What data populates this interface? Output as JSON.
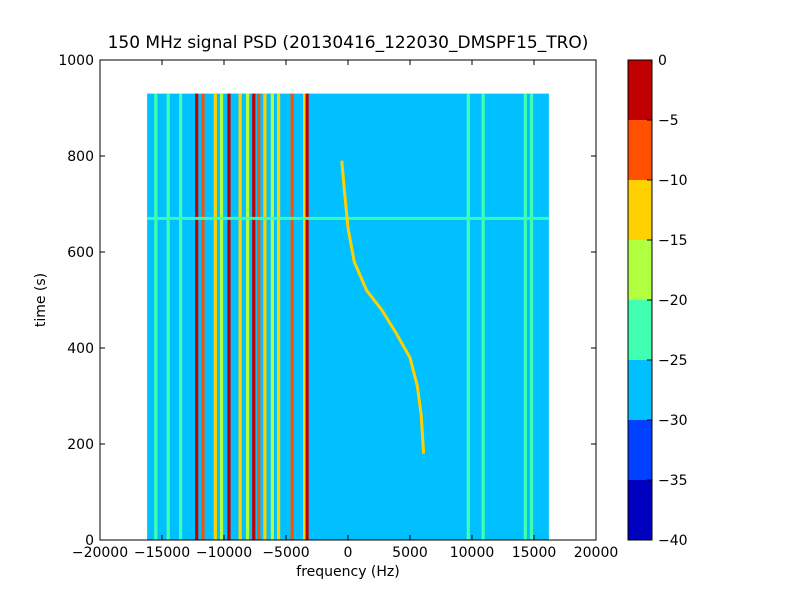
{
  "chart_data": {
    "type": "heatmap",
    "title": "150 MHz signal PSD (20130416_122030_DMSPF15_TRO)",
    "xlabel": "frequency (Hz)",
    "ylabel": "time (s)",
    "xlim": [
      -20000,
      20000
    ],
    "ylim": [
      0,
      1000
    ],
    "x_ticks": [
      -20000,
      -15000,
      -10000,
      -5000,
      0,
      5000,
      10000,
      15000,
      20000
    ],
    "x_tick_labels": [
      "−20000",
      "−15000",
      "−10000",
      "−5000",
      "0",
      "5000",
      "10000",
      "15000",
      "20000"
    ],
    "y_ticks": [
      0,
      200,
      400,
      600,
      800,
      1000
    ],
    "y_tick_labels": [
      "0",
      "200",
      "400",
      "600",
      "800",
      "1000"
    ],
    "data_extent": {
      "freq": [
        -16200,
        16200
      ],
      "time": [
        0,
        930
      ]
    },
    "background_level": -28,
    "colorbar": {
      "levels": [
        -40,
        -35,
        -30,
        -25,
        -20,
        -15,
        -10,
        -5,
        0
      ],
      "tick_labels": [
        "−40",
        "−35",
        "−30",
        "−25",
        "−20",
        "−15",
        "−10",
        "−5",
        "0"
      ],
      "colors": [
        "#0000c0",
        "#0040ff",
        "#00c0ff",
        "#40ffb0",
        "#b0ff40",
        "#ffd000",
        "#ff5000",
        "#c00000"
      ]
    },
    "vertical_lines": [
      {
        "freq": -12200,
        "level": -3
      },
      {
        "freq": -11700,
        "level": -8
      },
      {
        "freq": -10700,
        "level": -12
      },
      {
        "freq": -10200,
        "level": -18
      },
      {
        "freq": -9600,
        "level": -3
      },
      {
        "freq": -8700,
        "level": -12
      },
      {
        "freq": -8100,
        "level": -17
      },
      {
        "freq": -7600,
        "level": -3
      },
      {
        "freq": -7200,
        "level": -8
      },
      {
        "freq": -6700,
        "level": -13
      },
      {
        "freq": -6100,
        "level": -17
      },
      {
        "freq": -5600,
        "level": -12
      },
      {
        "freq": -4500,
        "level": -8
      },
      {
        "freq": -3500,
        "level": -12
      },
      {
        "freq": -3300,
        "level": -5
      },
      {
        "freq": -15500,
        "level": -22
      },
      {
        "freq": -14500,
        "level": -22
      },
      {
        "freq": -13500,
        "level": -22
      },
      {
        "freq": 9700,
        "level": -22
      },
      {
        "freq": 10900,
        "level": -22
      },
      {
        "freq": 14300,
        "level": -22
      },
      {
        "freq": 14800,
        "level": -22
      }
    ],
    "horizontal_band": {
      "time": 670,
      "level": -22
    },
    "doppler_track": {
      "level": -15,
      "points": [
        [
          -500,
          790
        ],
        [
          -300,
          730
        ],
        [
          0,
          650
        ],
        [
          500,
          580
        ],
        [
          1500,
          520
        ],
        [
          2700,
          480
        ],
        [
          3900,
          430
        ],
        [
          5000,
          380
        ],
        [
          5600,
          320
        ],
        [
          5900,
          260
        ],
        [
          6100,
          180
        ]
      ]
    }
  }
}
